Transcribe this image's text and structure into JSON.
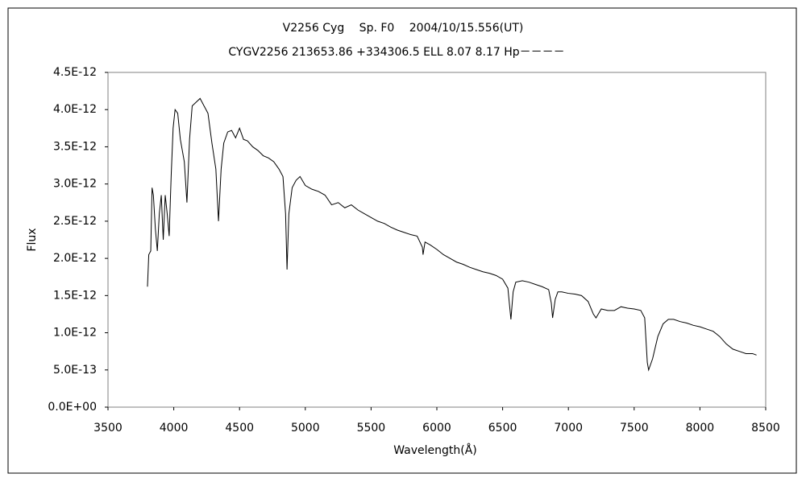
{
  "chart_data": {
    "type": "line",
    "title": "V2256 Cyg　 Sp. F0　 2004/10/15.556(UT)",
    "subtitle": "CYGV2256 213653.86 +334306.5 ELL 8.07 8.17 Hp－－－－",
    "x_label": "Wavelength(Å)",
    "y_label": "Flux",
    "color": "#000000",
    "grid": false,
    "xlim": [
      3500,
      8500
    ],
    "xticks": [
      3500,
      4000,
      4500,
      5000,
      5500,
      6000,
      6500,
      7000,
      7500,
      8000,
      8500
    ],
    "ylim": [
      0,
      4.5e-12
    ],
    "yticks": [
      {
        "value": 0,
        "label": "0.0E+00"
      },
      {
        "value": 5e-13,
        "label": "5.0E-13"
      },
      {
        "value": 1e-12,
        "label": "1.0E-12"
      },
      {
        "value": 1.5e-12,
        "label": "1.5E-12"
      },
      {
        "value": 2e-12,
        "label": "2.0E-12"
      },
      {
        "value": 2.5e-12,
        "label": "2.5E-12"
      },
      {
        "value": 3e-12,
        "label": "3.0E-12"
      },
      {
        "value": 3.5e-12,
        "label": "3.5E-12"
      },
      {
        "value": 4e-12,
        "label": "4.0E-12"
      },
      {
        "value": 4.5e-12,
        "label": "4.5E-12"
      }
    ],
    "x": [
      3800,
      3810,
      3825,
      3835,
      3845,
      3860,
      3875,
      3890,
      3905,
      3920,
      3935,
      3950,
      3965,
      3980,
      3995,
      4010,
      4030,
      4050,
      4080,
      4100,
      4120,
      4140,
      4170,
      4200,
      4230,
      4260,
      4290,
      4320,
      4340,
      4360,
      4380,
      4410,
      4440,
      4470,
      4500,
      4530,
      4560,
      4600,
      4640,
      4680,
      4720,
      4760,
      4800,
      4830,
      4850,
      4861,
      4875,
      4900,
      4930,
      4960,
      5000,
      5050,
      5100,
      5150,
      5200,
      5250,
      5300,
      5350,
      5400,
      5450,
      5500,
      5550,
      5600,
      5650,
      5700,
      5750,
      5800,
      5850,
      5890,
      5895,
      5910,
      5950,
      6000,
      6050,
      6100,
      6150,
      6200,
      6250,
      6300,
      6350,
      6400,
      6450,
      6500,
      6540,
      6563,
      6580,
      6600,
      6650,
      6700,
      6750,
      6800,
      6850,
      6870,
      6880,
      6900,
      6920,
      6950,
      7000,
      7050,
      7100,
      7150,
      7190,
      7210,
      7250,
      7300,
      7350,
      7400,
      7450,
      7500,
      7550,
      7580,
      7600,
      7610,
      7640,
      7680,
      7720,
      7760,
      7800,
      7850,
      7900,
      7950,
      8000,
      8050,
      8100,
      8150,
      8200,
      8250,
      8300,
      8350,
      8400,
      8430
    ],
    "values": [
      1.62e-12,
      2.05e-12,
      2.1e-12,
      2.95e-12,
      2.85e-12,
      2.4e-12,
      2.1e-12,
      2.6e-12,
      2.85e-12,
      2.25e-12,
      2.85e-12,
      2.6e-12,
      2.3e-12,
      3.1e-12,
      3.75e-12,
      4e-12,
      3.95e-12,
      3.6e-12,
      3.3e-12,
      2.75e-12,
      3.6e-12,
      4.05e-12,
      4.1e-12,
      4.15e-12,
      4.05e-12,
      3.95e-12,
      3.55e-12,
      3.2e-12,
      2.5e-12,
      3.2e-12,
      3.55e-12,
      3.7e-12,
      3.72e-12,
      3.62e-12,
      3.75e-12,
      3.6e-12,
      3.58e-12,
      3.5e-12,
      3.45e-12,
      3.38e-12,
      3.35e-12,
      3.3e-12,
      3.2e-12,
      3.1e-12,
      2.6e-12,
      1.85e-12,
      2.6e-12,
      2.95e-12,
      3.05e-12,
      3.1e-12,
      2.98e-12,
      2.93e-12,
      2.9e-12,
      2.85e-12,
      2.72e-12,
      2.75e-12,
      2.68e-12,
      2.72e-12,
      2.65e-12,
      2.6e-12,
      2.55e-12,
      2.5e-12,
      2.47e-12,
      2.42e-12,
      2.38e-12,
      2.35e-12,
      2.32e-12,
      2.3e-12,
      2.15e-12,
      2.05e-12,
      2.22e-12,
      2.18e-12,
      2.12e-12,
      2.05e-12,
      2e-12,
      1.95e-12,
      1.92e-12,
      1.88e-12,
      1.85e-12,
      1.82e-12,
      1.8e-12,
      1.77e-12,
      1.72e-12,
      1.6e-12,
      1.18e-12,
      1.55e-12,
      1.68e-12,
      1.7e-12,
      1.68e-12,
      1.65e-12,
      1.62e-12,
      1.58e-12,
      1.4e-12,
      1.2e-12,
      1.45e-12,
      1.55e-12,
      1.55e-12,
      1.53e-12,
      1.52e-12,
      1.5e-12,
      1.42e-12,
      1.25e-12,
      1.2e-12,
      1.32e-12,
      1.3e-12,
      1.3e-12,
      1.35e-12,
      1.33e-12,
      1.32e-12,
      1.3e-12,
      1.2e-12,
      6e-13,
      5e-13,
      6.5e-13,
      9.5e-13,
      1.12e-12,
      1.18e-12,
      1.18e-12,
      1.15e-12,
      1.13e-12,
      1.1e-12,
      1.08e-12,
      1.05e-12,
      1.02e-12,
      9.5e-13,
      8.5e-13,
      7.8e-13,
      7.5e-13,
      7.2e-13,
      7.2e-13,
      7e-13
    ]
  }
}
